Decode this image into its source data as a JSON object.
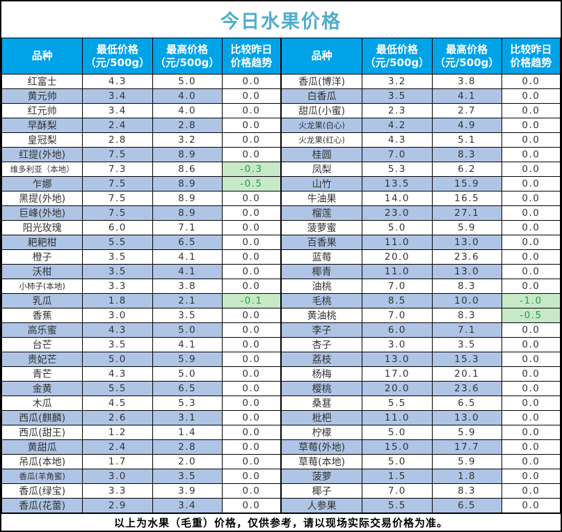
{
  "page": {
    "title": "今日水果价格",
    "footer": "以上为水果（毛重）价格，仅供参考，请以现场实际交易价格为准。"
  },
  "colors": {
    "title_text": "#4FAECB",
    "header_bg": "#00A2E8",
    "header_text": "#FFFFFF",
    "row_alt_bg": "#AFC5E6",
    "trend_down_bg": "#C7E9C8",
    "trend_down_text": "#2B9A47",
    "border": "#000000"
  },
  "columns": [
    {
      "line1": "品种",
      "line2": ""
    },
    {
      "line1": "最低价格",
      "line2": "（元/500g）"
    },
    {
      "line1": "最高价格",
      "line2": "（元/500g）"
    },
    {
      "line1": "比较昨日",
      "line2": "价格趋势"
    }
  ],
  "tables": [
    {
      "rows": [
        {
          "name": "红富士",
          "min": "4.3",
          "max": "5.0",
          "trend": "0.0"
        },
        {
          "name": "黄元帅",
          "min": "3.4",
          "max": "4.0",
          "trend": "0.0"
        },
        {
          "name": "红元帅",
          "min": "3.4",
          "max": "4.0",
          "trend": "0.0"
        },
        {
          "name": "早酥梨",
          "min": "2.4",
          "max": "2.8",
          "trend": "0.0"
        },
        {
          "name": "皇冠梨",
          "min": "2.8",
          "max": "3.2",
          "trend": "0.0"
        },
        {
          "name": "红提(外地)",
          "min": "7.5",
          "max": "8.9",
          "trend": "0.0"
        },
        {
          "name": "维多利亚（本地）",
          "min": "7.3",
          "max": "8.6",
          "trend": "-0.3"
        },
        {
          "name": "乍娜",
          "min": "7.5",
          "max": "8.9",
          "trend": "-0.5"
        },
        {
          "name": "黑提(外地)",
          "min": "7.5",
          "max": "8.9",
          "trend": "0.0"
        },
        {
          "name": "巨峰(外地)",
          "min": "7.5",
          "max": "8.9",
          "trend": "0.0"
        },
        {
          "name": "阳光玫瑰",
          "min": "6.0",
          "max": "7.1",
          "trend": "0.0"
        },
        {
          "name": "耙耙柑",
          "min": "5.5",
          "max": "6.5",
          "trend": "0.0"
        },
        {
          "name": "橙子",
          "min": "3.5",
          "max": "4.1",
          "trend": "0.0"
        },
        {
          "name": "沃柑",
          "min": "3.5",
          "max": "4.1",
          "trend": "0.0"
        },
        {
          "name": "小柿子(本地)",
          "min": "3.3",
          "max": "3.8",
          "trend": "0.0"
        },
        {
          "name": "乳瓜",
          "min": "1.8",
          "max": "2.1",
          "trend": "-0.1"
        },
        {
          "name": "香蕉",
          "min": "3.0",
          "max": "3.5",
          "trend": "0.0"
        },
        {
          "name": "高乐蜜",
          "min": "4.3",
          "max": "5.0",
          "trend": "0.0"
        },
        {
          "name": "台芒",
          "min": "3.5",
          "max": "4.1",
          "trend": "0.0"
        },
        {
          "name": "贵妃芒",
          "min": "5.0",
          "max": "5.9",
          "trend": "0.0"
        },
        {
          "name": "青芒",
          "min": "4.3",
          "max": "5.0",
          "trend": "0.0"
        },
        {
          "name": "金黄",
          "min": "5.5",
          "max": "6.5",
          "trend": "0.0"
        },
        {
          "name": "木瓜",
          "min": "4.5",
          "max": "5.3",
          "trend": "0.0"
        },
        {
          "name": "西瓜(麒麟)",
          "min": "2.6",
          "max": "3.1",
          "trend": "0.0"
        },
        {
          "name": "西瓜(甜王)",
          "min": "1.2",
          "max": "1.4",
          "trend": "0.0"
        },
        {
          "name": "黄甜瓜",
          "min": "2.4",
          "max": "2.8",
          "trend": "0.0"
        },
        {
          "name": "吊瓜(本地)",
          "min": "1.7",
          "max": "2.0",
          "trend": "0.0"
        },
        {
          "name": "香瓜(羊角蜜)",
          "min": "3.0",
          "max": "3.5",
          "trend": "0.0"
        },
        {
          "name": "香瓜(绿宝)",
          "min": "3.3",
          "max": "3.9",
          "trend": "0.0"
        },
        {
          "name": "香瓜(花蕾)",
          "min": "2.9",
          "max": "3.4",
          "trend": "0.0"
        }
      ]
    },
    {
      "rows": [
        {
          "name": "香瓜(博洋)",
          "min": "3.2",
          "max": "3.8",
          "trend": "0.0"
        },
        {
          "name": "白香瓜",
          "min": "3.5",
          "max": "4.1",
          "trend": "0.0"
        },
        {
          "name": "甜瓜(小蜜)",
          "min": "2.3",
          "max": "2.7",
          "trend": "0.0"
        },
        {
          "name": "火龙果(白心)",
          "min": "4.2",
          "max": "4.9",
          "trend": "0.0"
        },
        {
          "name": "火龙果(红心)",
          "min": "4.3",
          "max": "5.1",
          "trend": "0.0"
        },
        {
          "name": "桂圆",
          "min": "7.0",
          "max": "8.3",
          "trend": "0.0"
        },
        {
          "name": "凤梨",
          "min": "5.3",
          "max": "6.2",
          "trend": "0.0"
        },
        {
          "name": "山竹",
          "min": "13.5",
          "max": "15.9",
          "trend": "0.0"
        },
        {
          "name": "牛油果",
          "min": "14.0",
          "max": "16.5",
          "trend": "0.0"
        },
        {
          "name": "榴莲",
          "min": "23.0",
          "max": "27.1",
          "trend": "0.0"
        },
        {
          "name": "菠萝蜜",
          "min": "5.0",
          "max": "5.9",
          "trend": "0.0"
        },
        {
          "name": "百香果",
          "min": "11.0",
          "max": "13.0",
          "trend": "0.0"
        },
        {
          "name": "蓝莓",
          "min": "20.0",
          "max": "23.6",
          "trend": "0.0"
        },
        {
          "name": "椰青",
          "min": "11.0",
          "max": "13.0",
          "trend": "0.0"
        },
        {
          "name": "油桃",
          "min": "7.0",
          "max": "8.3",
          "trend": "0.0"
        },
        {
          "name": "毛桃",
          "min": "8.5",
          "max": "10.0",
          "trend": "-1.0"
        },
        {
          "name": "黄油桃",
          "min": "7.0",
          "max": "8.3",
          "trend": "-0.5"
        },
        {
          "name": "李子",
          "min": "6.0",
          "max": "7.1",
          "trend": "0.0"
        },
        {
          "name": "杏子",
          "min": "3.0",
          "max": "3.5",
          "trend": "0.0"
        },
        {
          "name": "荔枝",
          "min": "13.0",
          "max": "15.3",
          "trend": "0.0"
        },
        {
          "name": "杨梅",
          "min": "17.0",
          "max": "20.1",
          "trend": "0.0"
        },
        {
          "name": "樱桃",
          "min": "20.0",
          "max": "23.6",
          "trend": "0.0"
        },
        {
          "name": "桑葚",
          "min": "5.5",
          "max": "6.5",
          "trend": "0.0"
        },
        {
          "name": "枇杷",
          "min": "11.0",
          "max": "13.0",
          "trend": "0.0"
        },
        {
          "name": "柠檬",
          "min": "5.0",
          "max": "5.9",
          "trend": "0.0"
        },
        {
          "name": "草莓(外地)",
          "min": "15.0",
          "max": "17.7",
          "trend": "0.0"
        },
        {
          "name": "草莓(本地)",
          "min": "5.0",
          "max": "5.9",
          "trend": "0.0"
        },
        {
          "name": "菠萝",
          "min": "1.5",
          "max": "1.8",
          "trend": "0.0"
        },
        {
          "name": "椰子",
          "min": "7.0",
          "max": "8.3",
          "trend": "0.0"
        },
        {
          "name": "人参果",
          "min": "5.5",
          "max": "6.5",
          "trend": "0.0"
        }
      ]
    }
  ]
}
